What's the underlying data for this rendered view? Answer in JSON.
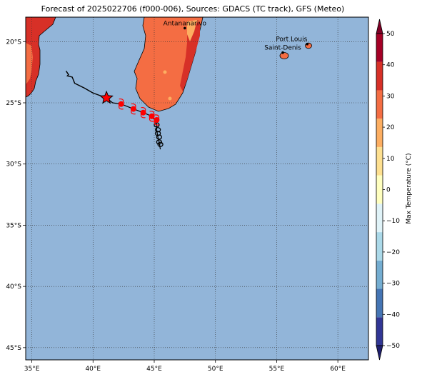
{
  "title": "Forecast of 2025022706 (f000-006), Sources: GDACS (TC track), GFS (Meteo)",
  "map": {
    "lon_range": [
      34.5,
      62.5
    ],
    "lat_range": [
      -46,
      -18
    ],
    "lon_ticks": [
      {
        "v": 35,
        "label": "35°E"
      },
      {
        "v": 40,
        "label": "40°E"
      },
      {
        "v": 45,
        "label": "45°E"
      },
      {
        "v": 50,
        "label": "50°E"
      },
      {
        "v": 55,
        "label": "55°E"
      },
      {
        "v": 60,
        "label": "60°E"
      }
    ],
    "lat_ticks": [
      {
        "v": -20,
        "label": "20°S"
      },
      {
        "v": -25,
        "label": "25°S"
      },
      {
        "v": -30,
        "label": "30°S"
      },
      {
        "v": -35,
        "label": "35°S"
      },
      {
        "v": -40,
        "label": "40°S"
      },
      {
        "v": -45,
        "label": "45°S"
      }
    ],
    "ocean_color": "#92b5d9",
    "grid": "dotted"
  },
  "cities": [
    {
      "name": "Antananarivo",
      "lon": 47.5,
      "lat": -18.9
    },
    {
      "name": "Port Louis",
      "lon": 57.5,
      "lat": -20.2
    },
    {
      "name": "Saint-Denis",
      "lon": 55.5,
      "lat": -20.9
    }
  ],
  "storm": {
    "current": {
      "lon": 41.1,
      "lat": -24.6
    },
    "past_track": [
      [
        37.8,
        -22.4
      ],
      [
        38.0,
        -22.7
      ],
      [
        37.9,
        -22.8
      ],
      [
        38.3,
        -22.9
      ],
      [
        38.5,
        -23.4
      ],
      [
        38.9,
        -23.6
      ],
      [
        39.3,
        -23.8
      ],
      [
        40.0,
        -24.2
      ],
      [
        41.1,
        -24.6
      ]
    ],
    "forecast_track": [
      [
        41.1,
        -24.6
      ],
      [
        41.6,
        -25.0
      ],
      [
        42.3,
        -25.1
      ],
      [
        43.3,
        -25.5
      ],
      [
        44.1,
        -25.8
      ],
      [
        44.8,
        -26.1
      ],
      [
        45.2,
        -26.6
      ],
      [
        45.2,
        -27.2
      ],
      [
        45.3,
        -27.8
      ],
      [
        45.4,
        -28.2
      ],
      [
        45.5,
        -28.8
      ]
    ],
    "symbols": [
      [
        42.3,
        -25.1
      ],
      [
        43.3,
        -25.5
      ],
      [
        44.1,
        -25.8
      ],
      [
        44.8,
        -26.1
      ],
      [
        45.2,
        -26.4
      ]
    ],
    "loops": [
      [
        45.2,
        -26.8
      ],
      [
        45.3,
        -27.2
      ],
      [
        45.3,
        -27.5
      ],
      [
        45.4,
        -27.8
      ],
      [
        45.4,
        -28.2
      ],
      [
        45.5,
        -28.4
      ]
    ]
  },
  "colorbar": {
    "label": "Max Temperature (°C)",
    "levels": [
      -50,
      -40,
      -30,
      -20,
      -10,
      0,
      10,
      20,
      30,
      40,
      50
    ],
    "colors": [
      "#313695",
      "#4575b4",
      "#74add1",
      "#abd9e9",
      "#e0f3f8",
      "#ffffbf",
      "#fee090",
      "#fdae61",
      "#f46d43",
      "#d73027",
      "#a50026"
    ],
    "under_color": "#202070",
    "over_color": "#800026"
  }
}
